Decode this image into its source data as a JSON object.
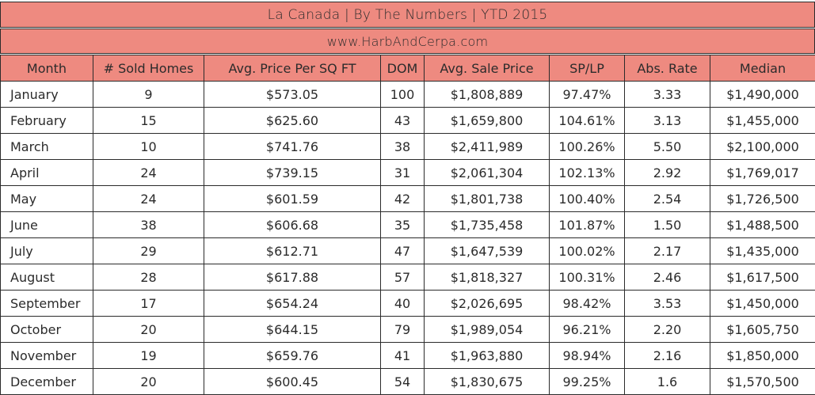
{
  "title": "La Canada |  By The Numbers  |  YTD 2015",
  "website": "www.HarbAndCerpa.com",
  "columns": [
    "Month",
    "# Sold Homes",
    "Avg. Price Per SQ FT",
    "DOM",
    "Avg. Sale Price",
    "SP/LP",
    "Abs. Rate",
    "Median"
  ],
  "rows": [
    [
      "January",
      "9",
      "$573.05",
      "100",
      "$1,808,889",
      "97.47%",
      "3.33",
      "$1,490,000"
    ],
    [
      "February",
      "15",
      "$625.60",
      "43",
      "$1,659,800",
      "104.61%",
      "3.13",
      "$1,455,000"
    ],
    [
      "March",
      "10",
      "$741.76",
      "38",
      "$2,411,989",
      "100.26%",
      "5.50",
      "$2,100,000"
    ],
    [
      "April",
      "24",
      "$739.15",
      "31",
      "$2,061,304",
      "102.13%",
      "2.92",
      "$1,769,017"
    ],
    [
      "May",
      "24",
      "$601.59",
      "42",
      "$1,801,738",
      "100.40%",
      "2.54",
      "$1,726,500"
    ],
    [
      "June",
      "38",
      "$606.68",
      "35",
      "$1,735,458",
      "101.87%",
      "1.50",
      "$1,488,500"
    ],
    [
      "July",
      "29",
      "$612.71",
      "47",
      "$1,647,539",
      "100.02%",
      "2.17",
      "$1,435,000"
    ],
    [
      "August",
      "28",
      "$617.88",
      "57",
      "$1,818,327",
      "100.31%",
      "2.46",
      "$1,617,500"
    ],
    [
      "September",
      "17",
      "$654.24",
      "40",
      "$2,026,695",
      "98.42%",
      "3.53",
      "$1,450,000"
    ],
    [
      "October",
      "20",
      "$644.15",
      "79",
      "$1,989,054",
      "96.21%",
      "2.20",
      "$1,605,750"
    ],
    [
      "November",
      "19",
      "$659.76",
      "41",
      "$1,963,880",
      "98.94%",
      "2.16",
      "$1,850,000"
    ],
    [
      "December",
      "20",
      "$600.45",
      "54",
      "$1,830,675",
      "99.25%",
      "1.6",
      "$1,570,500"
    ]
  ],
  "colors": {
    "header_bg": "#ee8a80",
    "border": "#2b2b2b",
    "text": "#2b2b2b",
    "cell_bg": "#ffffff"
  }
}
